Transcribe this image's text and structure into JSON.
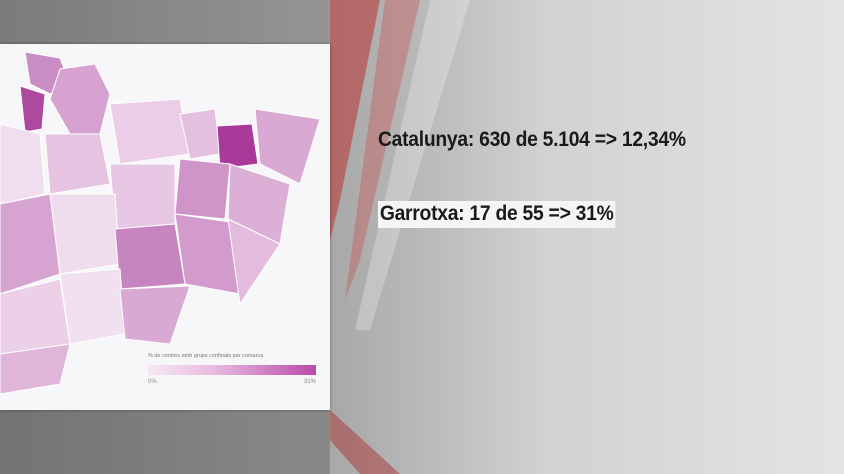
{
  "map": {
    "legend_title": "% de centres amb grups confinats per comarca",
    "legend_min": "0%",
    "legend_max": "31%",
    "color_low": "#f6e8f4",
    "color_high": "#b84aa9",
    "highlighted_region_color": "#a93a9a"
  },
  "stats": {
    "catalunya": "Catalunya: 630 de 5.104 => 12,34%",
    "garrotxa": "Garrotxa: 17 de 55 => 31%"
  }
}
